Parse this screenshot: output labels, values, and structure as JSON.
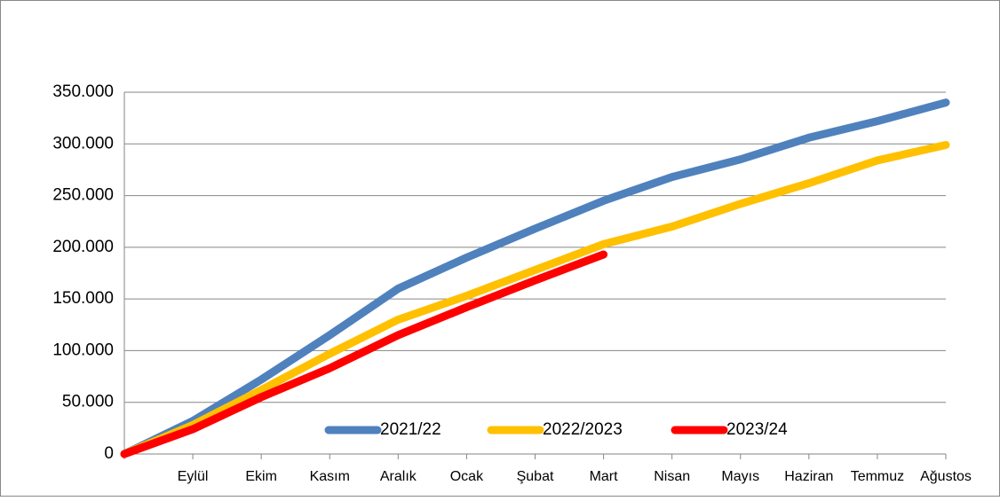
{
  "chart_data": {
    "type": "line",
    "categories": [
      null,
      "Eylül",
      "Ekim",
      "Kasım",
      "Aralık",
      "Ocak",
      "Şubat",
      "Mart",
      "Nisan",
      "Mayıs",
      "Haziran",
      "Temmuz",
      "Ağustos"
    ],
    "series": [
      {
        "name": "2021/22",
        "color": "#4f81bd",
        "values": [
          0,
          32000,
          72000,
          115000,
          160000,
          190000,
          218000,
          245000,
          268000,
          285000,
          306000,
          322000,
          340000
        ]
      },
      {
        "name": "2022/2023",
        "color": "#ffc000",
        "values": [
          0,
          28000,
          62000,
          97000,
          130000,
          153000,
          178000,
          203000,
          220000,
          242000,
          262000,
          284000,
          299000
        ]
      },
      {
        "name": "2023/24",
        "color": "#ff0000",
        "values": [
          0,
          24000,
          55000,
          83000,
          115000,
          142000,
          168000,
          193000,
          null,
          null,
          null,
          null,
          null
        ]
      }
    ],
    "ylim": [
      0,
      350000
    ],
    "yticks": [
      0,
      {
        "value": 50000,
        "label": "50.000"
      },
      {
        "value": 100000,
        "label": "100.000"
      },
      {
        "value": 150000,
        "label": "150.000"
      },
      {
        "value": 200000,
        "label": "200.000"
      },
      {
        "value": 250000,
        "label": "250.000"
      },
      {
        "value": 300000,
        "label": "300.000"
      },
      {
        "value": 350000,
        "label": "350.000"
      }
    ],
    "grid": true,
    "legend": "bottom"
  }
}
